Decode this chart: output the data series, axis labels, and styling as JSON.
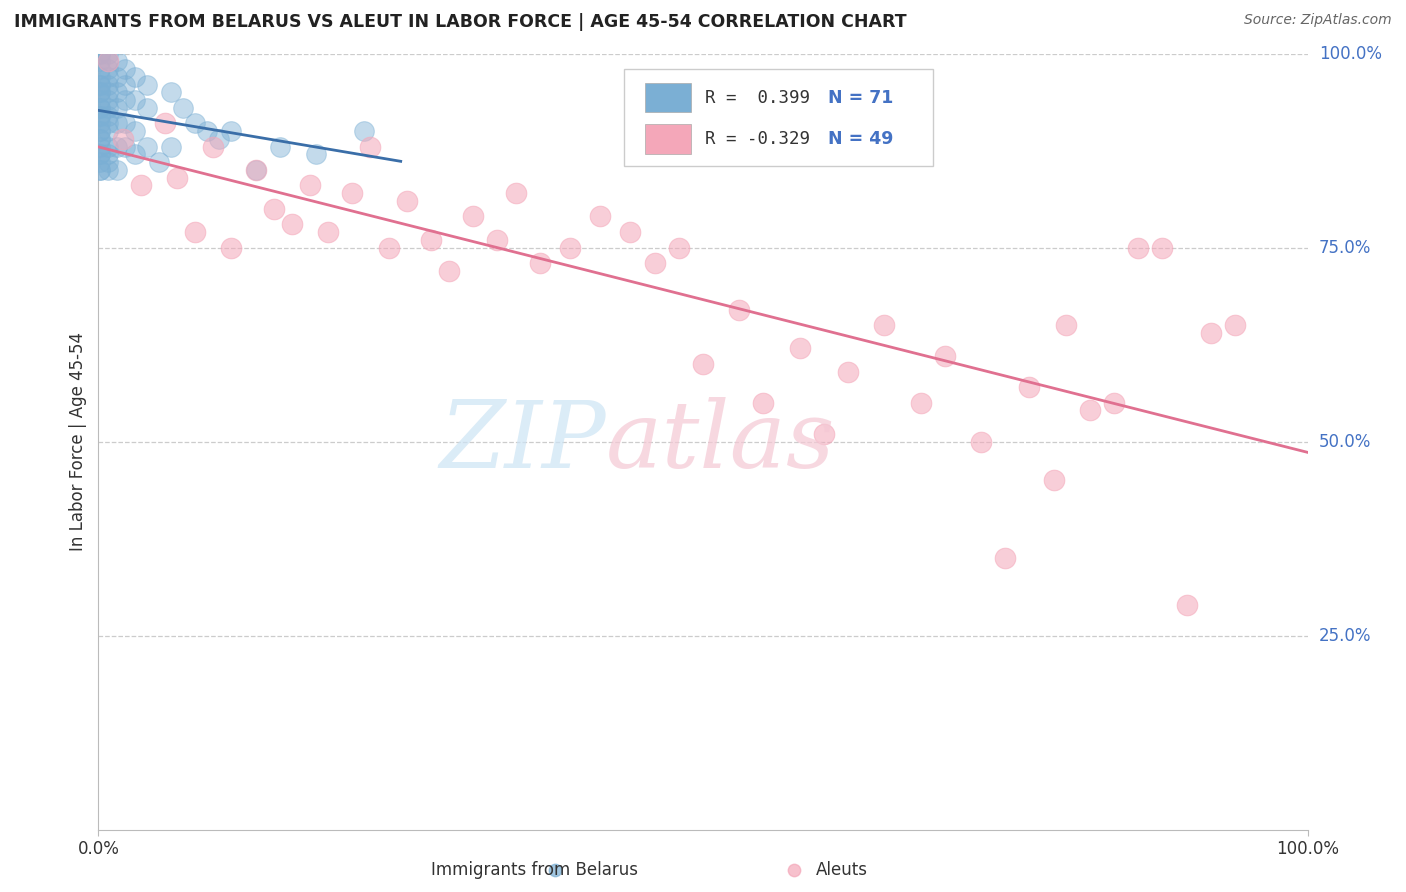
{
  "title": "IMMIGRANTS FROM BELARUS VS ALEUT IN LABOR FORCE | AGE 45-54 CORRELATION CHART",
  "source": "Source: ZipAtlas.com",
  "ylabel": "In Labor Force | Age 45-54",
  "watermark_zip": "ZIP",
  "watermark_atlas": "atlas",
  "belarus_color": "#7bafd4",
  "aleut_color": "#f4a7b9",
  "belarus_line_color": "#3a6ea8",
  "aleut_line_color": "#e07090",
  "belarus_points": [
    [
      0.001,
      1.0
    ],
    [
      0.001,
      1.0
    ],
    [
      0.001,
      0.99
    ],
    [
      0.001,
      0.98
    ],
    [
      0.001,
      0.97
    ],
    [
      0.001,
      0.96
    ],
    [
      0.001,
      0.96
    ],
    [
      0.001,
      0.95
    ],
    [
      0.001,
      0.95
    ],
    [
      0.001,
      0.94
    ],
    [
      0.001,
      0.93
    ],
    [
      0.001,
      0.93
    ],
    [
      0.001,
      0.92
    ],
    [
      0.001,
      0.92
    ],
    [
      0.001,
      0.91
    ],
    [
      0.001,
      0.9
    ],
    [
      0.001,
      0.9
    ],
    [
      0.001,
      0.89
    ],
    [
      0.001,
      0.89
    ],
    [
      0.001,
      0.88
    ],
    [
      0.001,
      0.87
    ],
    [
      0.001,
      0.87
    ],
    [
      0.001,
      0.86
    ],
    [
      0.001,
      0.85
    ],
    [
      0.001,
      0.85
    ],
    [
      0.008,
      1.0
    ],
    [
      0.008,
      0.99
    ],
    [
      0.008,
      0.98
    ],
    [
      0.008,
      0.97
    ],
    [
      0.008,
      0.96
    ],
    [
      0.008,
      0.95
    ],
    [
      0.008,
      0.94
    ],
    [
      0.008,
      0.93
    ],
    [
      0.008,
      0.92
    ],
    [
      0.008,
      0.91
    ],
    [
      0.008,
      0.9
    ],
    [
      0.008,
      0.88
    ],
    [
      0.008,
      0.87
    ],
    [
      0.008,
      0.86
    ],
    [
      0.008,
      0.85
    ],
    [
      0.015,
      0.99
    ],
    [
      0.015,
      0.97
    ],
    [
      0.015,
      0.95
    ],
    [
      0.015,
      0.93
    ],
    [
      0.015,
      0.91
    ],
    [
      0.015,
      0.88
    ],
    [
      0.015,
      0.85
    ],
    [
      0.022,
      0.98
    ],
    [
      0.022,
      0.96
    ],
    [
      0.022,
      0.94
    ],
    [
      0.022,
      0.91
    ],
    [
      0.022,
      0.88
    ],
    [
      0.03,
      0.97
    ],
    [
      0.03,
      0.94
    ],
    [
      0.03,
      0.9
    ],
    [
      0.03,
      0.87
    ],
    [
      0.04,
      0.96
    ],
    [
      0.04,
      0.93
    ],
    [
      0.04,
      0.88
    ],
    [
      0.05,
      0.86
    ],
    [
      0.06,
      0.95
    ],
    [
      0.06,
      0.88
    ],
    [
      0.07,
      0.93
    ],
    [
      0.08,
      0.91
    ],
    [
      0.09,
      0.9
    ],
    [
      0.1,
      0.89
    ],
    [
      0.11,
      0.9
    ],
    [
      0.13,
      0.85
    ],
    [
      0.15,
      0.88
    ],
    [
      0.18,
      0.87
    ],
    [
      0.22,
      0.9
    ]
  ],
  "aleut_points": [
    [
      0.008,
      0.99
    ],
    [
      0.02,
      0.89
    ],
    [
      0.035,
      0.83
    ],
    [
      0.055,
      0.91
    ],
    [
      0.065,
      0.84
    ],
    [
      0.08,
      0.77
    ],
    [
      0.095,
      0.88
    ],
    [
      0.11,
      0.75
    ],
    [
      0.13,
      0.85
    ],
    [
      0.145,
      0.8
    ],
    [
      0.16,
      0.78
    ],
    [
      0.175,
      0.83
    ],
    [
      0.19,
      0.77
    ],
    [
      0.21,
      0.82
    ],
    [
      0.225,
      0.88
    ],
    [
      0.24,
      0.75
    ],
    [
      0.255,
      0.81
    ],
    [
      0.275,
      0.76
    ],
    [
      0.29,
      0.72
    ],
    [
      0.31,
      0.79
    ],
    [
      0.33,
      0.76
    ],
    [
      0.345,
      0.82
    ],
    [
      0.365,
      0.73
    ],
    [
      0.39,
      0.75
    ],
    [
      0.415,
      0.79
    ],
    [
      0.44,
      0.77
    ],
    [
      0.46,
      0.73
    ],
    [
      0.48,
      0.75
    ],
    [
      0.5,
      0.6
    ],
    [
      0.53,
      0.67
    ],
    [
      0.55,
      0.55
    ],
    [
      0.58,
      0.62
    ],
    [
      0.6,
      0.51
    ],
    [
      0.62,
      0.59
    ],
    [
      0.65,
      0.65
    ],
    [
      0.68,
      0.55
    ],
    [
      0.7,
      0.61
    ],
    [
      0.73,
      0.5
    ],
    [
      0.75,
      0.35
    ],
    [
      0.77,
      0.57
    ],
    [
      0.79,
      0.45
    ],
    [
      0.8,
      0.65
    ],
    [
      0.82,
      0.54
    ],
    [
      0.84,
      0.55
    ],
    [
      0.86,
      0.75
    ],
    [
      0.88,
      0.75
    ],
    [
      0.9,
      0.29
    ],
    [
      0.92,
      0.64
    ],
    [
      0.94,
      0.65
    ]
  ],
  "xlim": [
    0,
    1.0
  ],
  "ylim": [
    0,
    1.0
  ],
  "ytick_vals": [
    1.0,
    0.75,
    0.5,
    0.25
  ],
  "ytick_labels": [
    "100.0%",
    "75.0%",
    "50.0%",
    "25.0%"
  ],
  "xtick_vals": [
    0.0,
    1.0
  ],
  "xtick_labels": [
    "0.0%",
    "100.0%"
  ]
}
